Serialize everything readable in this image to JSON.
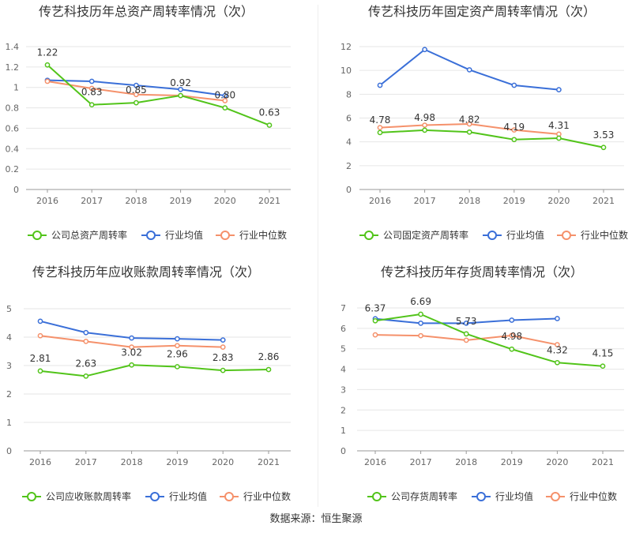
{
  "source": "数据来源：恒生聚源",
  "colors": {
    "company": "#52c41a",
    "avg": "#3a6fd8",
    "median": "#f5916b",
    "axis": "#666666",
    "grid": "#e6e6e6"
  },
  "chart_data": [
    {
      "type": "line",
      "title": "传艺科技历年总资产周转率情况（次）",
      "categories": [
        "2016",
        "2017",
        "2018",
        "2019",
        "2020",
        "2021"
      ],
      "ylim": [
        0,
        1.4
      ],
      "yticks": [
        "0",
        "0.2",
        "0.4",
        "0.6",
        "0.8",
        "1",
        "1.2",
        "1.4"
      ],
      "labels": [
        "1.22",
        "0.83",
        "0.85",
        "0.92",
        "0.80",
        "0.63"
      ],
      "series": [
        {
          "name": "公司总资产周转率",
          "key": "company",
          "values": [
            1.22,
            0.83,
            0.85,
            0.92,
            0.8,
            0.63
          ]
        },
        {
          "name": "行业均值",
          "key": "avg",
          "values": [
            1.07,
            1.06,
            1.02,
            0.98,
            0.92,
            null
          ]
        },
        {
          "name": "行业中位数",
          "key": "median",
          "values": [
            1.06,
            0.99,
            0.93,
            0.92,
            0.87,
            null
          ]
        }
      ]
    },
    {
      "type": "line",
      "title": "传艺科技历年固定资产周转率情况（次）",
      "categories": [
        "2016",
        "2017",
        "2018",
        "2019",
        "2020",
        "2021"
      ],
      "ylim": [
        0,
        12
      ],
      "yticks": [
        "0",
        "2",
        "4",
        "6",
        "8",
        "10",
        "12"
      ],
      "labels": [
        "4.78",
        "4.98",
        "4.82",
        "4.19",
        "4.31",
        "3.53"
      ],
      "series": [
        {
          "name": "公司固定资产周转率",
          "key": "company",
          "values": [
            4.78,
            4.98,
            4.82,
            4.19,
            4.31,
            3.53
          ]
        },
        {
          "name": "行业均值",
          "key": "avg",
          "values": [
            8.75,
            11.75,
            10.05,
            8.75,
            8.38,
            null
          ]
        },
        {
          "name": "行业中位数",
          "key": "median",
          "values": [
            5.2,
            5.4,
            5.5,
            5.0,
            4.65,
            null
          ]
        }
      ]
    },
    {
      "type": "line",
      "title": "传艺科技历年应收账款周转率情况（次）",
      "categories": [
        "2016",
        "2017",
        "2018",
        "2019",
        "2020",
        "2021"
      ],
      "ylim": [
        0,
        5
      ],
      "yticks": [
        "0",
        "1",
        "2",
        "3",
        "4",
        "5"
      ],
      "labels": [
        "2.81",
        "2.63",
        "3.02",
        "2.96",
        "2.83",
        "2.86"
      ],
      "series": [
        {
          "name": "公司应收账款周转率",
          "key": "company",
          "values": [
            2.81,
            2.63,
            3.02,
            2.96,
            2.83,
            2.86
          ]
        },
        {
          "name": "行业均值",
          "key": "avg",
          "values": [
            4.56,
            4.16,
            3.97,
            3.94,
            3.9,
            null
          ]
        },
        {
          "name": "行业中位数",
          "key": "median",
          "values": [
            4.05,
            3.85,
            3.65,
            3.7,
            3.65,
            null
          ]
        }
      ]
    },
    {
      "type": "line",
      "title": "传艺科技历年存货周转率情况（次）",
      "categories": [
        "2016",
        "2017",
        "2018",
        "2019",
        "2020",
        "2021"
      ],
      "ylim": [
        0,
        7
      ],
      "yticks": [
        "0",
        "1",
        "2",
        "3",
        "4",
        "5",
        "6",
        "7"
      ],
      "labels": [
        "6.37",
        "6.69",
        "5.73",
        "4.98",
        "4.32",
        "4.15"
      ],
      "series": [
        {
          "name": "公司存货周转率",
          "key": "company",
          "values": [
            6.37,
            6.69,
            5.73,
            4.98,
            4.32,
            4.15
          ]
        },
        {
          "name": "行业均值",
          "key": "avg",
          "values": [
            6.47,
            6.25,
            6.25,
            6.4,
            6.48,
            null
          ]
        },
        {
          "name": "行业中位数",
          "key": "median",
          "values": [
            5.68,
            5.64,
            5.42,
            5.65,
            5.2,
            null
          ]
        }
      ]
    }
  ]
}
